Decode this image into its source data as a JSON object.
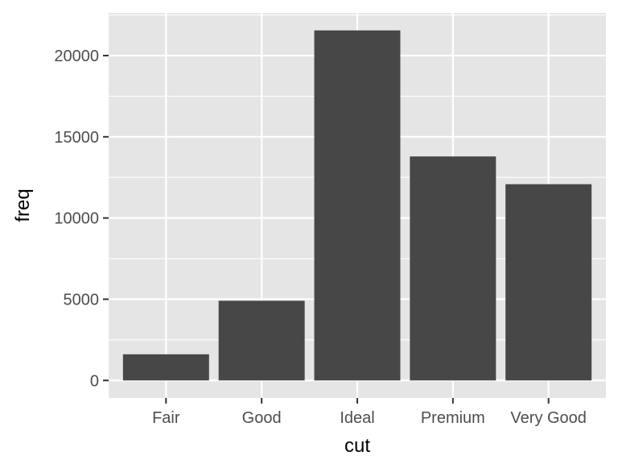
{
  "chart_data": {
    "type": "bar",
    "title": "",
    "xlabel": "cut",
    "ylabel": "freq",
    "categories": [
      "Fair",
      "Good",
      "Ideal",
      "Premium",
      "Very Good"
    ],
    "values": [
      1610,
      4906,
      21551,
      13791,
      12082
    ],
    "ylim": [
      -1078,
      22629
    ],
    "yticks": [
      0,
      5000,
      10000,
      15000,
      20000
    ],
    "ytick_labels": [
      "0",
      "5000",
      "10000",
      "15000",
      "20000"
    ],
    "grid": true,
    "legend": "none",
    "colors": {
      "bar": "#474747",
      "panel": "#e5e5e5",
      "grid": "#ffffff",
      "tick_text": "#4d4d4d",
      "axis_title": "#000000"
    }
  }
}
